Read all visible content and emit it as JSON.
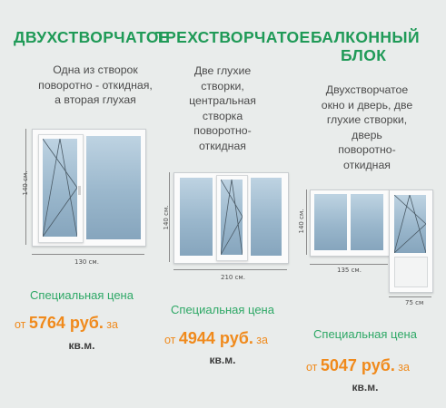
{
  "columns": [
    {
      "title": "ДВУХСТВОРЧАТОЕ",
      "description": [
        "Одна из створок",
        "поворотно - откидная,",
        "а вторая глухая"
      ],
      "dim_height": "140 см.",
      "dim_width": "130 см.",
      "special_label": "Специальная цена",
      "price_prefix": "от ",
      "price_value": "5764 руб.",
      "price_suffix": " за",
      "price_unit": "кв.м."
    },
    {
      "title": "ТРЕХСТВОРЧАТОЕ",
      "description": [
        "Две глухие",
        "створки,",
        "центральная",
        "створка",
        "поворотно-",
        "откидная"
      ],
      "dim_height": "140 см.",
      "dim_width": "210 см.",
      "special_label": "Специальная цена",
      "price_prefix": "от ",
      "price_value": "4944 руб.",
      "price_suffix": " за",
      "price_unit": "кв.м."
    },
    {
      "title_lines": [
        "БАЛКОННЫЙ",
        "БЛОК"
      ],
      "description": [
        "Двухстворчатое",
        "окно и дверь, две",
        "глухие створки,",
        "дверь",
        "поворотно-",
        "откидная"
      ],
      "dim_height": "140 см.",
      "dim_width": "135 см.",
      "dim_door": "75 см",
      "special_label": "Специальная цена",
      "price_prefix": "от ",
      "price_value": "5047 руб.",
      "price_suffix": " за",
      "price_unit": "кв.м."
    }
  ],
  "colors": {
    "title_green": "#1f9a57",
    "special_green": "#2ea866",
    "price_orange": "#f08a1c",
    "background": "#e9eceb"
  }
}
